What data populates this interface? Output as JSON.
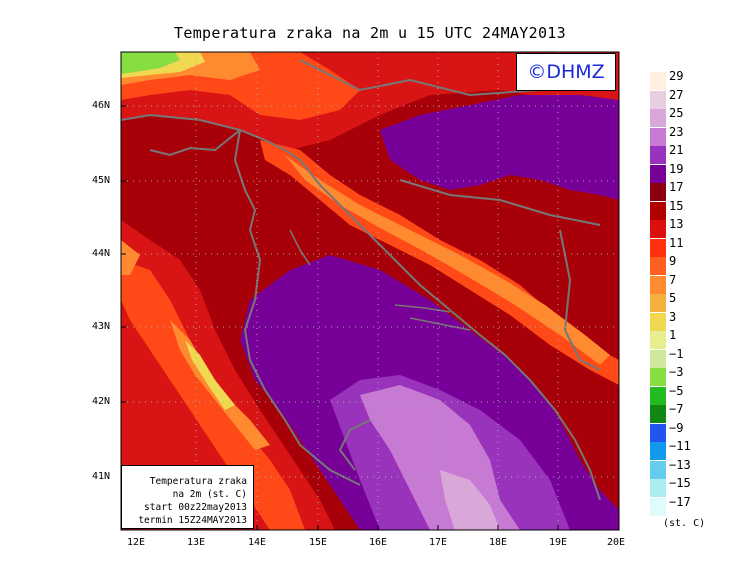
{
  "title": "Temperatura zraka na 2m u 15 UTC 24MAY2013",
  "logo_text": "©DHMZ",
  "info_box": {
    "line1": "Temperatura zraka",
    "line2": "na 2m (st. C)",
    "line3": "start 00z22may2013",
    "line4": "termin 15Z24MAY2013"
  },
  "lat_labels": [
    "46N",
    "45N",
    "44N",
    "43N",
    "42N",
    "41N"
  ],
  "lon_labels": [
    "12E",
    "13E",
    "14E",
    "15E",
    "16E",
    "17E",
    "18E",
    "19E",
    "20E"
  ],
  "legend": {
    "unit": "(st. C)",
    "ticks": [
      "29",
      "27",
      "25",
      "23",
      "21",
      "19",
      "17",
      "15",
      "13",
      "11",
      "9",
      "7",
      "5",
      "3",
      "1",
      "−1",
      "−3",
      "−5",
      "−7",
      "−9",
      "−11",
      "−13",
      "−15",
      "−17"
    ],
    "colors": [
      "#fff0e0",
      "#e8cfe0",
      "#d9a8d9",
      "#c77ad3",
      "#9933bb",
      "#770099",
      "#8a0010",
      "#b00000",
      "#dd1010",
      "#ff3010",
      "#ff6020",
      "#ff8a30",
      "#f5b040",
      "#f0d850",
      "#e8ee90",
      "#cce89a",
      "#88dd40",
      "#22bb22",
      "#118811",
      "#2255ee",
      "#1199ee",
      "#66ccee",
      "#aaeef0",
      "#e0fbfb"
    ]
  },
  "colors": {
    "background": "#ffffff",
    "logo_text": "#1a2ad8",
    "coastline": "#777777"
  }
}
